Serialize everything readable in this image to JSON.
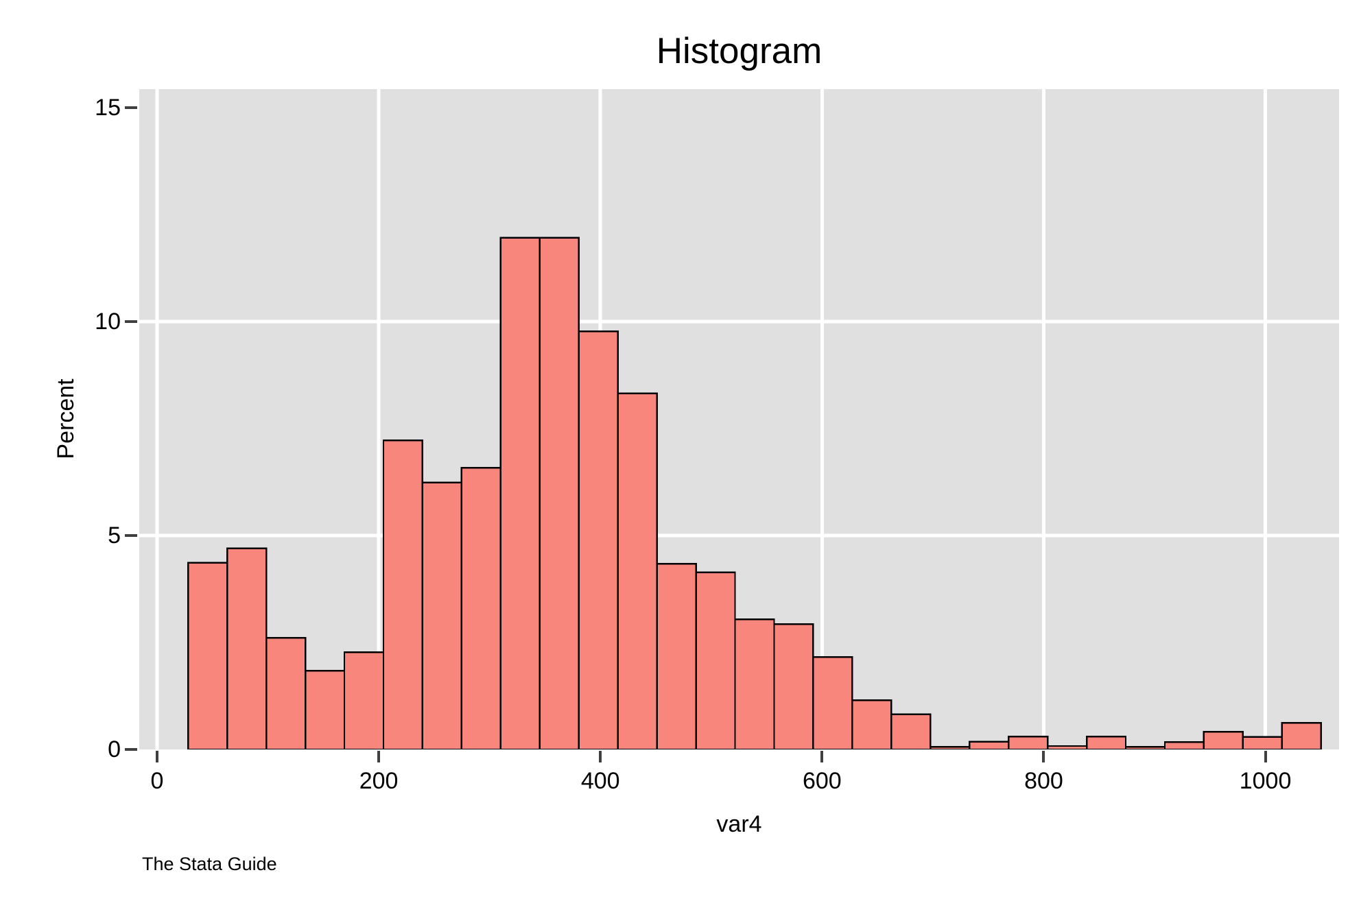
{
  "chart_data": {
    "type": "bar",
    "subtype": "histogram",
    "title": "Histogram",
    "xlabel": "var4",
    "ylabel": "Percent",
    "caption": "The Stata Guide",
    "x_ticks": [
      0,
      200,
      400,
      600,
      800,
      1000
    ],
    "y_ticks": [
      0,
      5,
      10,
      15
    ],
    "grid_x_at": [
      0,
      200,
      400,
      600,
      800,
      1000
    ],
    "grid_y_at": [
      5,
      10
    ],
    "xlim": [
      -16.1,
      1066.5
    ],
    "ylim": [
      0,
      15.43
    ],
    "bin_start": 28,
    "bin_width": 35.25,
    "percents": [
      4.36,
      4.7,
      2.61,
      1.84,
      2.27,
      7.22,
      6.24,
      6.58,
      11.96,
      11.96,
      9.77,
      8.32,
      4.34,
      4.14,
      3.04,
      2.93,
      2.16,
      1.15,
      0.82,
      0.06,
      0.18,
      0.3,
      0.08,
      0.3,
      0.06,
      0.17,
      0.41,
      0.29,
      0.62
    ],
    "bar_fill": "#f8867d",
    "bar_stroke": "#000000",
    "plot_bg": "#e0e0e0",
    "grid_color": "#ffffff",
    "tick_color": "#404040",
    "legend": "none",
    "grid": "on"
  }
}
